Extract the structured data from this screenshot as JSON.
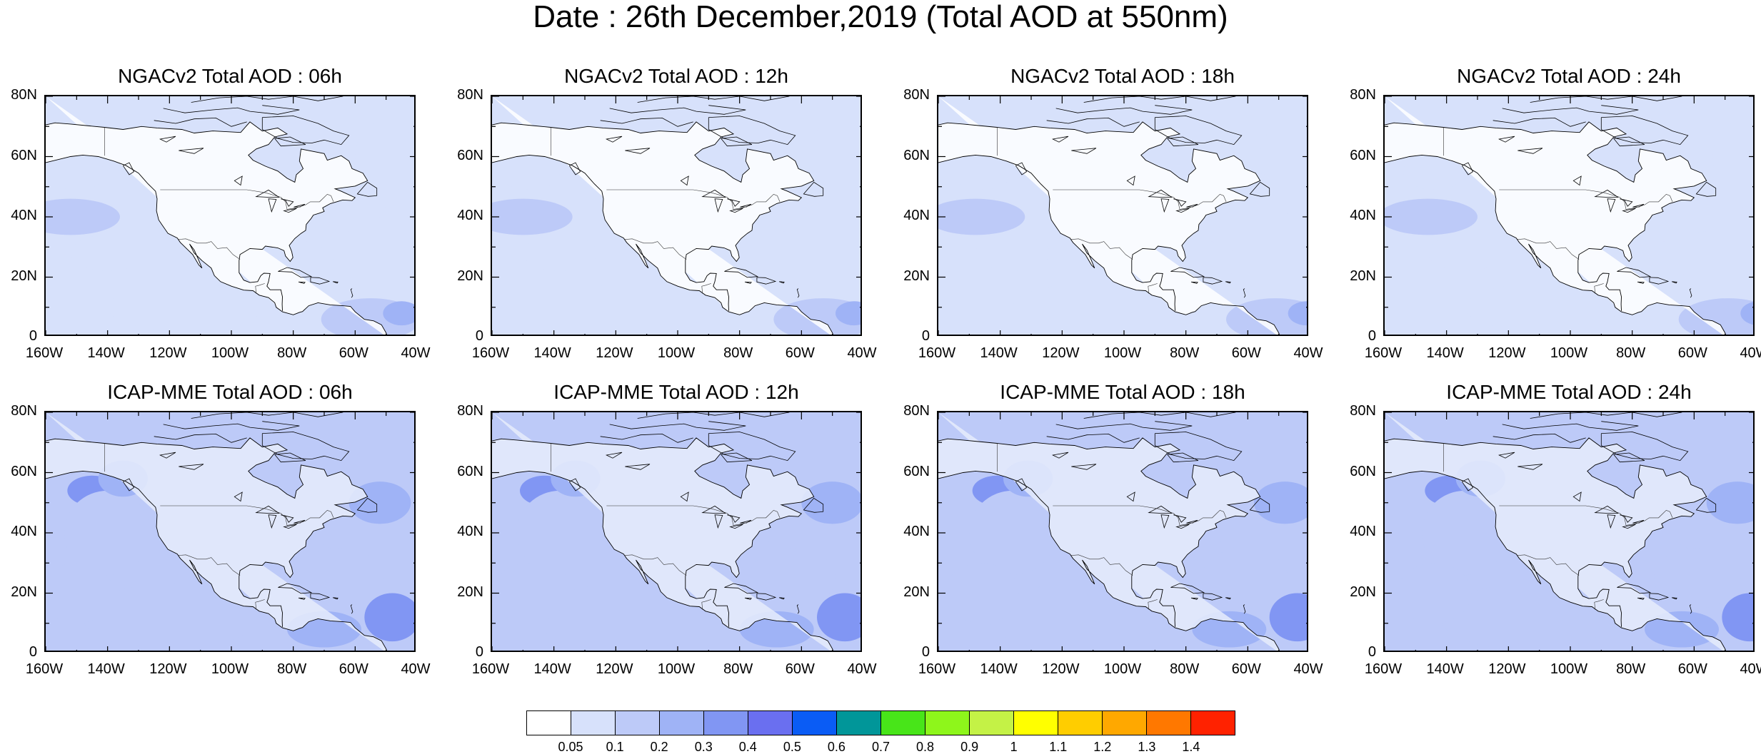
{
  "title": "Date : 26th December,2019 (Total AOD at 550nm)",
  "axes": {
    "lat_ticks": [
      "80N",
      "60N",
      "40N",
      "20N",
      "0"
    ],
    "lon_ticks": [
      "160W",
      "140W",
      "120W",
      "100W",
      "80W",
      "60W",
      "40W"
    ]
  },
  "panels": [
    {
      "title": "NGACv2 Total AOD : 06h",
      "model": "NGACv2",
      "hour": "06h"
    },
    {
      "title": "NGACv2 Total AOD : 12h",
      "model": "NGACv2",
      "hour": "12h"
    },
    {
      "title": "NGACv2 Total AOD : 18h",
      "model": "NGACv2",
      "hour": "18h"
    },
    {
      "title": "NGACv2 Total AOD : 24h",
      "model": "NGACv2",
      "hour": "24h"
    },
    {
      "title": "ICAP-MME Total AOD : 06h",
      "model": "ICAP-MME",
      "hour": "06h"
    },
    {
      "title": "ICAP-MME Total AOD : 12h",
      "model": "ICAP-MME",
      "hour": "12h"
    },
    {
      "title": "ICAP-MME Total AOD : 18h",
      "model": "ICAP-MME",
      "hour": "18h"
    },
    {
      "title": "ICAP-MME Total AOD : 24h",
      "model": "ICAP-MME",
      "hour": "24h"
    }
  ],
  "colorbar": {
    "labels": [
      "0.05",
      "0.1",
      "0.2",
      "0.3",
      "0.4",
      "0.5",
      "0.6",
      "0.7",
      "0.8",
      "0.9",
      "1",
      "1.1",
      "1.2",
      "1.3",
      "1.4"
    ],
    "colors": [
      "#ffffff",
      "#d7e1fb",
      "#bdcaf8",
      "#9fb3f6",
      "#8196f3",
      "#6a6ff0",
      "#0a5cf5",
      "#019699",
      "#48e519",
      "#8ef61b",
      "#c4f246",
      "#ffff00",
      "#ffcd00",
      "#ffa800",
      "#ff7800",
      "#ff2200"
    ]
  }
}
